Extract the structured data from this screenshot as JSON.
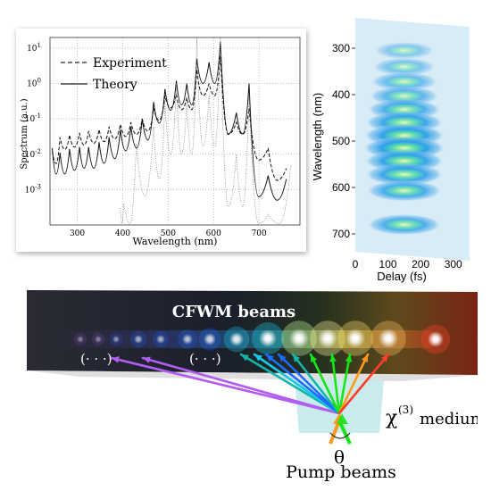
{
  "chart_data": [
    {
      "type": "line",
      "xlabel": "Wavelength (nm)",
      "ylabel": "Spectrum (a.u.)",
      "xlim": [
        240,
        790
      ],
      "ylim_log10": [
        -4,
        1.3
      ],
      "y_scale": "log",
      "x_ticks": [
        "300",
        "400",
        "500",
        "600",
        "700"
      ],
      "x_tick_values": [
        300,
        400,
        500,
        600,
        700
      ],
      "y_ticks": [
        "10<sup>-3</sup>",
        "10<sup>-2</sup>",
        "10<sup>-1</sup>",
        "10<sup>0</sup>",
        "10<sup>1</sup>"
      ],
      "y_tick_labels": [
        "10",
        "10",
        "10",
        "10",
        "10"
      ],
      "y_tick_exponents": [
        "-3",
        "-2",
        "-1",
        "0",
        "1"
      ],
      "grid": true,
      "legend_placement": "top-left",
      "series": [
        {
          "name": "Experiment",
          "style": "dashed",
          "x": [
            245,
            262,
            283,
            305,
            325,
            348,
            370,
            395,
            418,
            443,
            468,
            493,
            518,
            541,
            563,
            590,
            615,
            650,
            678,
            720,
            760
          ],
          "y": [
            0.012,
            0.03,
            0.035,
            0.04,
            0.045,
            0.05,
            0.06,
            0.07,
            0.08,
            0.1,
            0.2,
            0.45,
            0.5,
            0.4,
            2.5,
            1.0,
            6.0,
            0.08,
            0.2,
            0.015,
            0.004
          ]
        },
        {
          "name": "Theory",
          "style": "solid",
          "x": [
            245,
            262,
            283,
            305,
            325,
            348,
            370,
            395,
            418,
            443,
            468,
            493,
            518,
            541,
            563,
            590,
            615,
            650,
            678,
            720,
            760
          ],
          "y": [
            0.015,
            0.011,
            0.014,
            0.016,
            0.016,
            0.022,
            0.03,
            0.05,
            0.06,
            0.1,
            0.3,
            0.7,
            1.2,
            1.0,
            5.0,
            4.0,
            15.0,
            0.15,
            1.0,
            0.0025,
            0.002
          ]
        },
        {
          "name": "",
          "style": "dotted",
          "x": [
            395,
            402,
            430,
            468,
            493,
            518,
            541,
            563,
            590,
            615,
            650,
            678,
            720,
            770
          ],
          "y": [
            0.0003,
            0.0004,
            0.02,
            0.06,
            0.3,
            1.0,
            0.3,
            20.0,
            0.5,
            20.0,
            0.01,
            0.5,
            0.0002,
            0.005
          ]
        }
      ]
    },
    {
      "type": "heatmap",
      "xlabel": "Delay (fs)",
      "ylabel": "Wavelength (nm)",
      "x_ticks": [
        "0",
        "100",
        "200",
        "300"
      ],
      "x_tick_values": [
        0,
        100,
        200,
        300
      ],
      "xlim": [
        0,
        350
      ],
      "y_ticks": [
        "300",
        "400",
        "500",
        "600",
        "700"
      ],
      "y_tick_values": [
        300,
        400,
        500,
        600,
        700
      ],
      "ylim": [
        750,
        250
      ],
      "bands_nm": [
        305,
        340,
        372,
        403,
        432,
        460,
        488,
        515,
        543,
        572,
        607,
        680
      ],
      "band_intensity": [
        0.2,
        0.3,
        0.45,
        0.55,
        0.7,
        0.85,
        0.95,
        1.0,
        0.9,
        0.85,
        0.75,
        0.7
      ],
      "delay_center_fs": 150,
      "delay_halfwidth_fs": 120
    }
  ],
  "beam_diagram": {
    "title": "CFWM beams",
    "medium_label": "χ",
    "medium_superscript": "(3)",
    "medium_suffix": "medium",
    "angle_label": "θ",
    "pump_label": "Pump beams",
    "ellipsis_left": "(· · ·)",
    "ellipsis_right": "(· · ·)",
    "colors": {
      "violet": "#b35cf0",
      "blue": "#1e6bff",
      "cyan": "#18c8e8",
      "teal": "#12b6a8",
      "green": "#18e418",
      "orange": "#ff9a1e",
      "red": "#ff3c28",
      "medium": "#bfe8ea"
    }
  }
}
